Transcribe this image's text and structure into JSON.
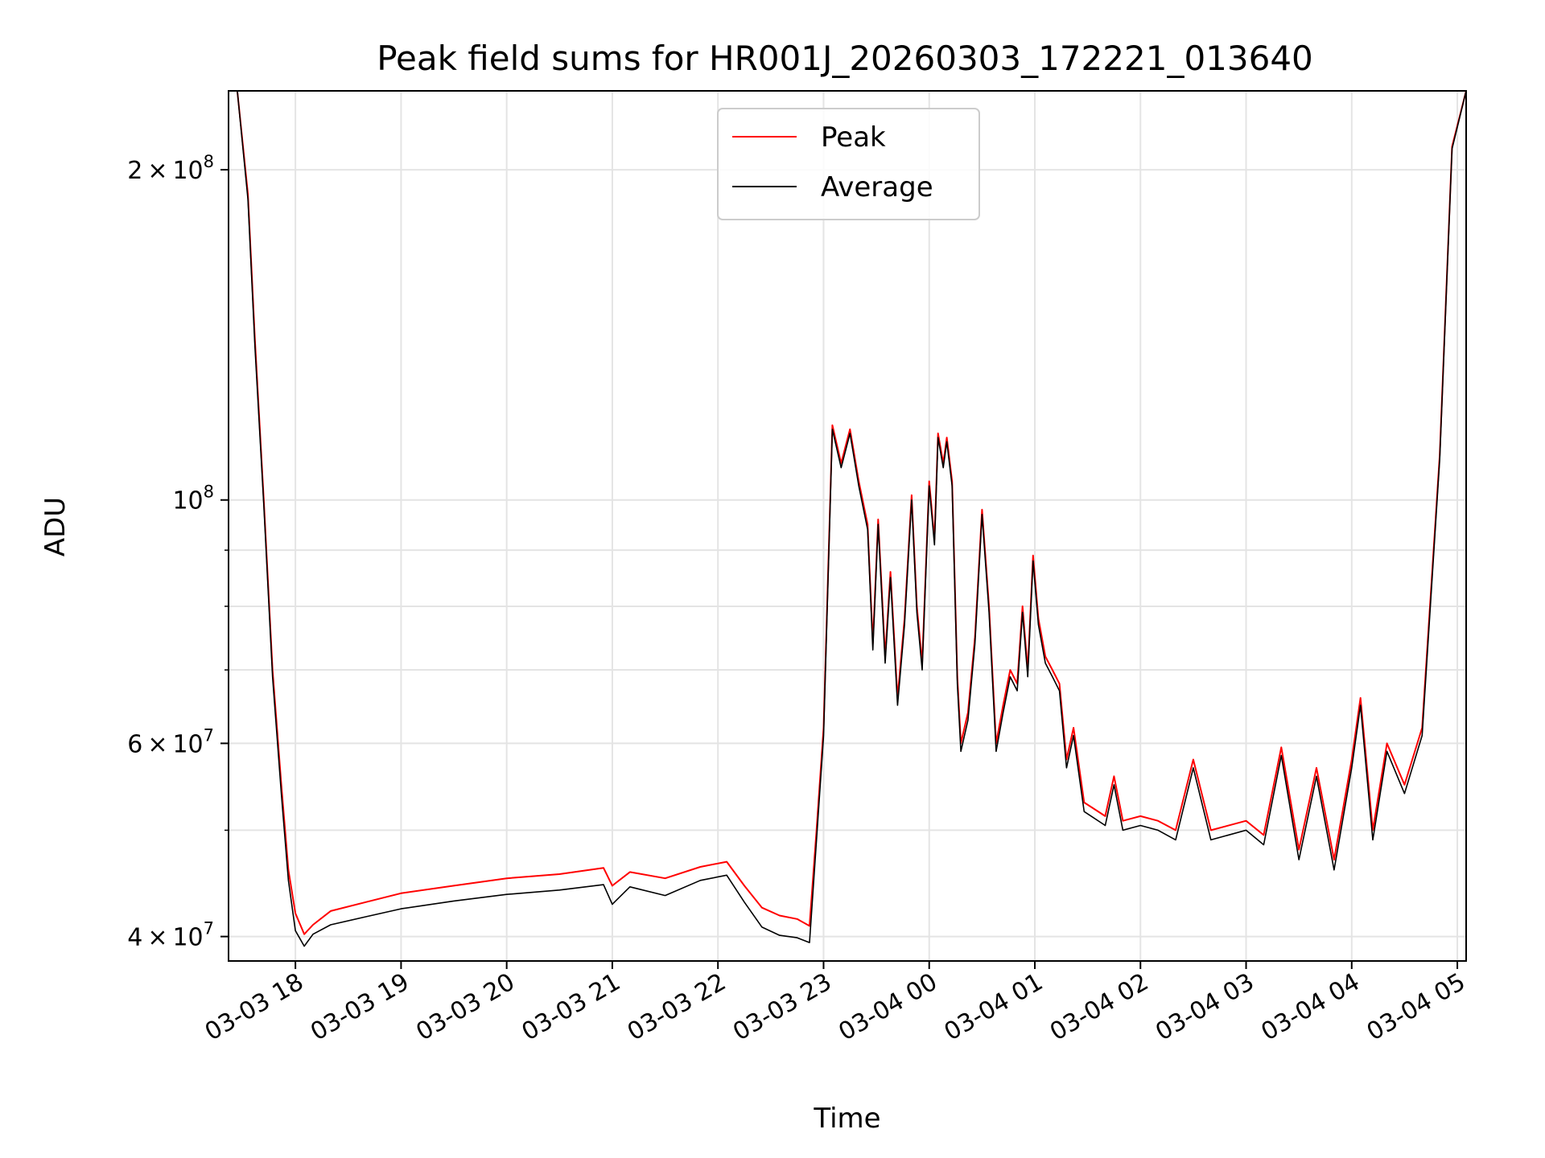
{
  "chart_data": {
    "type": "line",
    "title": "Peak field sums for HR001J_20260303_172221_013640",
    "xlabel": "Time",
    "ylabel": "ADU",
    "y_scale": "log",
    "ylim": [
      38000000,
      236000000
    ],
    "xlim": [
      "2026-03-03 17:22",
      "2026-03-04 05:05"
    ],
    "grid": true,
    "legend_position": "top-center",
    "x_ticks": [
      {
        "t": "2026-03-03 18:00",
        "label": "03-03 18"
      },
      {
        "t": "2026-03-03 19:00",
        "label": "03-03 19"
      },
      {
        "t": "2026-03-03 20:00",
        "label": "03-03 20"
      },
      {
        "t": "2026-03-03 21:00",
        "label": "03-03 21"
      },
      {
        "t": "2026-03-03 22:00",
        "label": "03-03 22"
      },
      {
        "t": "2026-03-03 23:00",
        "label": "03-03 23"
      },
      {
        "t": "2026-03-04 00:00",
        "label": "03-04 00"
      },
      {
        "t": "2026-03-04 01:00",
        "label": "03-04 01"
      },
      {
        "t": "2026-03-04 02:00",
        "label": "03-04 02"
      },
      {
        "t": "2026-03-04 03:00",
        "label": "03-04 03"
      },
      {
        "t": "2026-03-04 04:00",
        "label": "03-04 04"
      },
      {
        "t": "2026-03-04 05:00",
        "label": "03-04 05"
      }
    ],
    "y_ticks": [
      {
        "value": 40000000,
        "mant": "4",
        "exp": "7"
      },
      {
        "value": 60000000,
        "mant": "6",
        "exp": "7"
      },
      {
        "value": 100000000,
        "mant": "",
        "exp": "8"
      },
      {
        "value": 200000000,
        "mant": "2",
        "exp": "8"
      }
    ],
    "y_minor_ticks": [
      50000000,
      70000000,
      80000000,
      90000000
    ],
    "series": [
      {
        "name": "Peak",
        "color": "#ff0000",
        "points": [
          [
            "2026-03-03 17:22",
            236000000
          ],
          [
            "2026-03-03 17:27",
            236000000
          ],
          [
            "2026-03-03 17:33",
            190000000
          ],
          [
            "2026-03-03 17:37",
            140000000
          ],
          [
            "2026-03-03 17:42",
            100000000
          ],
          [
            "2026-03-03 17:47",
            70000000
          ],
          [
            "2026-03-03 17:52",
            55000000
          ],
          [
            "2026-03-03 17:56",
            46000000
          ],
          [
            "2026-03-03 18:00",
            42000000
          ],
          [
            "2026-03-03 18:05",
            40200000
          ],
          [
            "2026-03-03 18:10",
            41000000
          ],
          [
            "2026-03-03 18:20",
            42200000
          ],
          [
            "2026-03-03 18:40",
            43000000
          ],
          [
            "2026-03-03 19:00",
            43800000
          ],
          [
            "2026-03-03 19:30",
            44500000
          ],
          [
            "2026-03-03 20:00",
            45200000
          ],
          [
            "2026-03-03 20:30",
            45600000
          ],
          [
            "2026-03-03 20:55",
            46200000
          ],
          [
            "2026-03-03 21:00",
            44500000
          ],
          [
            "2026-03-03 21:10",
            45800000
          ],
          [
            "2026-03-03 21:30",
            45200000
          ],
          [
            "2026-03-03 21:50",
            46300000
          ],
          [
            "2026-03-03 22:05",
            46800000
          ],
          [
            "2026-03-03 22:15",
            44500000
          ],
          [
            "2026-03-03 22:25",
            42500000
          ],
          [
            "2026-03-03 22:35",
            41800000
          ],
          [
            "2026-03-03 22:45",
            41500000
          ],
          [
            "2026-03-03 22:52",
            40900000
          ],
          [
            "2026-03-03 22:56",
            50000000
          ],
          [
            "2026-03-03 23:00",
            62000000
          ],
          [
            "2026-03-03 23:05",
            117000000
          ],
          [
            "2026-03-03 23:10",
            108000000
          ],
          [
            "2026-03-03 23:15",
            116000000
          ],
          [
            "2026-03-03 23:20",
            104000000
          ],
          [
            "2026-03-03 23:25",
            95000000
          ],
          [
            "2026-03-03 23:28",
            74000000
          ],
          [
            "2026-03-03 23:31",
            96000000
          ],
          [
            "2026-03-03 23:35",
            72000000
          ],
          [
            "2026-03-03 23:38",
            86000000
          ],
          [
            "2026-03-03 23:42",
            66000000
          ],
          [
            "2026-03-03 23:46",
            78000000
          ],
          [
            "2026-03-03 23:50",
            101000000
          ],
          [
            "2026-03-03 23:53",
            80000000
          ],
          [
            "2026-03-03 23:56",
            71000000
          ],
          [
            "2026-03-04 00:00",
            104000000
          ],
          [
            "2026-03-04 00:03",
            92000000
          ],
          [
            "2026-03-04 00:05",
            115000000
          ],
          [
            "2026-03-04 00:08",
            108000000
          ],
          [
            "2026-03-04 00:10",
            114000000
          ],
          [
            "2026-03-04 00:13",
            104000000
          ],
          [
            "2026-03-04 00:16",
            69000000
          ],
          [
            "2026-03-04 00:18",
            60000000
          ],
          [
            "2026-03-04 00:22",
            64000000
          ],
          [
            "2026-03-04 00:26",
            75000000
          ],
          [
            "2026-03-04 00:30",
            98000000
          ],
          [
            "2026-03-04 00:34",
            80000000
          ],
          [
            "2026-03-04 00:38",
            60000000
          ],
          [
            "2026-03-04 00:42",
            65000000
          ],
          [
            "2026-03-04 00:46",
            70000000
          ],
          [
            "2026-03-04 00:50",
            68000000
          ],
          [
            "2026-03-04 00:53",
            80000000
          ],
          [
            "2026-03-04 00:56",
            70000000
          ],
          [
            "2026-03-04 00:59",
            89000000
          ],
          [
            "2026-03-04 01:02",
            78000000
          ],
          [
            "2026-03-04 01:06",
            72000000
          ],
          [
            "2026-03-04 01:10",
            70000000
          ],
          [
            "2026-03-04 01:14",
            68000000
          ],
          [
            "2026-03-04 01:18",
            58000000
          ],
          [
            "2026-03-04 01:22",
            62000000
          ],
          [
            "2026-03-04 01:28",
            53000000
          ],
          [
            "2026-03-04 01:40",
            51500000
          ],
          [
            "2026-03-04 01:45",
            56000000
          ],
          [
            "2026-03-04 01:50",
            51000000
          ],
          [
            "2026-03-04 02:00",
            51500000
          ],
          [
            "2026-03-04 02:10",
            51000000
          ],
          [
            "2026-03-04 02:20",
            50000000
          ],
          [
            "2026-03-04 02:30",
            58000000
          ],
          [
            "2026-03-04 02:40",
            50000000
          ],
          [
            "2026-03-04 03:00",
            51000000
          ],
          [
            "2026-03-04 03:10",
            49500000
          ],
          [
            "2026-03-04 03:20",
            59500000
          ],
          [
            "2026-03-04 03:30",
            48000000
          ],
          [
            "2026-03-04 03:40",
            57000000
          ],
          [
            "2026-03-04 03:50",
            47000000
          ],
          [
            "2026-03-04 04:00",
            58000000
          ],
          [
            "2026-03-04 04:05",
            66000000
          ],
          [
            "2026-03-04 04:12",
            50000000
          ],
          [
            "2026-03-04 04:20",
            60000000
          ],
          [
            "2026-03-04 04:30",
            55000000
          ],
          [
            "2026-03-04 04:40",
            62000000
          ],
          [
            "2026-03-04 04:50",
            110000000
          ],
          [
            "2026-03-04 04:57",
            210000000
          ],
          [
            "2026-03-04 05:05",
            236000000
          ]
        ]
      },
      {
        "name": "Average",
        "color": "#000000",
        "points": [
          [
            "2026-03-03 17:22",
            236000000
          ],
          [
            "2026-03-03 17:27",
            236000000
          ],
          [
            "2026-03-03 17:33",
            188000000
          ],
          [
            "2026-03-03 17:37",
            138000000
          ],
          [
            "2026-03-03 17:42",
            99000000
          ],
          [
            "2026-03-03 17:47",
            69000000
          ],
          [
            "2026-03-03 17:52",
            54000000
          ],
          [
            "2026-03-03 17:56",
            45000000
          ],
          [
            "2026-03-03 18:00",
            40500000
          ],
          [
            "2026-03-03 18:05",
            39200000
          ],
          [
            "2026-03-03 18:10",
            40200000
          ],
          [
            "2026-03-03 18:20",
            41000000
          ],
          [
            "2026-03-03 18:40",
            41700000
          ],
          [
            "2026-03-03 19:00",
            42400000
          ],
          [
            "2026-03-03 19:30",
            43100000
          ],
          [
            "2026-03-03 20:00",
            43700000
          ],
          [
            "2026-03-03 20:30",
            44100000
          ],
          [
            "2026-03-03 20:55",
            44600000
          ],
          [
            "2026-03-03 21:00",
            42800000
          ],
          [
            "2026-03-03 21:10",
            44400000
          ],
          [
            "2026-03-03 21:30",
            43600000
          ],
          [
            "2026-03-03 21:50",
            45000000
          ],
          [
            "2026-03-03 22:05",
            45500000
          ],
          [
            "2026-03-03 22:15",
            43000000
          ],
          [
            "2026-03-03 22:25",
            40800000
          ],
          [
            "2026-03-03 22:35",
            40100000
          ],
          [
            "2026-03-03 22:45",
            39900000
          ],
          [
            "2026-03-03 22:52",
            39500000
          ],
          [
            "2026-03-03 22:56",
            49000000
          ],
          [
            "2026-03-03 23:00",
            61000000
          ],
          [
            "2026-03-03 23:05",
            116000000
          ],
          [
            "2026-03-03 23:10",
            107000000
          ],
          [
            "2026-03-03 23:15",
            115000000
          ],
          [
            "2026-03-03 23:20",
            103000000
          ],
          [
            "2026-03-03 23:25",
            94000000
          ],
          [
            "2026-03-03 23:28",
            73000000
          ],
          [
            "2026-03-03 23:31",
            95000000
          ],
          [
            "2026-03-03 23:35",
            71000000
          ],
          [
            "2026-03-03 23:38",
            85000000
          ],
          [
            "2026-03-03 23:42",
            65000000
          ],
          [
            "2026-03-03 23:46",
            77000000
          ],
          [
            "2026-03-03 23:50",
            100000000
          ],
          [
            "2026-03-03 23:53",
            79000000
          ],
          [
            "2026-03-03 23:56",
            70000000
          ],
          [
            "2026-03-04 00:00",
            103000000
          ],
          [
            "2026-03-04 00:03",
            91000000
          ],
          [
            "2026-03-04 00:05",
            114000000
          ],
          [
            "2026-03-04 00:08",
            107000000
          ],
          [
            "2026-03-04 00:10",
            113000000
          ],
          [
            "2026-03-04 00:13",
            103000000
          ],
          [
            "2026-03-04 00:16",
            68000000
          ],
          [
            "2026-03-04 00:18",
            59000000
          ],
          [
            "2026-03-04 00:22",
            63000000
          ],
          [
            "2026-03-04 00:26",
            74000000
          ],
          [
            "2026-03-04 00:30",
            97000000
          ],
          [
            "2026-03-04 00:34",
            79000000
          ],
          [
            "2026-03-04 00:38",
            59000000
          ],
          [
            "2026-03-04 00:42",
            64000000
          ],
          [
            "2026-03-04 00:46",
            69000000
          ],
          [
            "2026-03-04 00:50",
            67000000
          ],
          [
            "2026-03-04 00:53",
            79000000
          ],
          [
            "2026-03-04 00:56",
            69000000
          ],
          [
            "2026-03-04 00:59",
            88000000
          ],
          [
            "2026-03-04 01:02",
            77000000
          ],
          [
            "2026-03-04 01:06",
            71000000
          ],
          [
            "2026-03-04 01:10",
            69000000
          ],
          [
            "2026-03-04 01:14",
            67000000
          ],
          [
            "2026-03-04 01:18",
            57000000
          ],
          [
            "2026-03-04 01:22",
            61000000
          ],
          [
            "2026-03-04 01:28",
            52000000
          ],
          [
            "2026-03-04 01:40",
            50500000
          ],
          [
            "2026-03-04 01:45",
            55000000
          ],
          [
            "2026-03-04 01:50",
            50000000
          ],
          [
            "2026-03-04 02:00",
            50500000
          ],
          [
            "2026-03-04 02:10",
            50000000
          ],
          [
            "2026-03-04 02:20",
            49000000
          ],
          [
            "2026-03-04 02:30",
            57000000
          ],
          [
            "2026-03-04 02:40",
            49000000
          ],
          [
            "2026-03-04 03:00",
            50000000
          ],
          [
            "2026-03-04 03:10",
            48500000
          ],
          [
            "2026-03-04 03:20",
            58500000
          ],
          [
            "2026-03-04 03:30",
            47000000
          ],
          [
            "2026-03-04 03:40",
            56000000
          ],
          [
            "2026-03-04 03:50",
            46000000
          ],
          [
            "2026-03-04 04:00",
            57000000
          ],
          [
            "2026-03-04 04:05",
            65000000
          ],
          [
            "2026-03-04 04:12",
            49000000
          ],
          [
            "2026-03-04 04:20",
            59000000
          ],
          [
            "2026-03-04 04:30",
            54000000
          ],
          [
            "2026-03-04 04:40",
            61000000
          ],
          [
            "2026-03-04 04:50",
            109000000
          ],
          [
            "2026-03-04 04:57",
            209000000
          ],
          [
            "2026-03-04 05:05",
            236000000
          ]
        ]
      }
    ]
  }
}
